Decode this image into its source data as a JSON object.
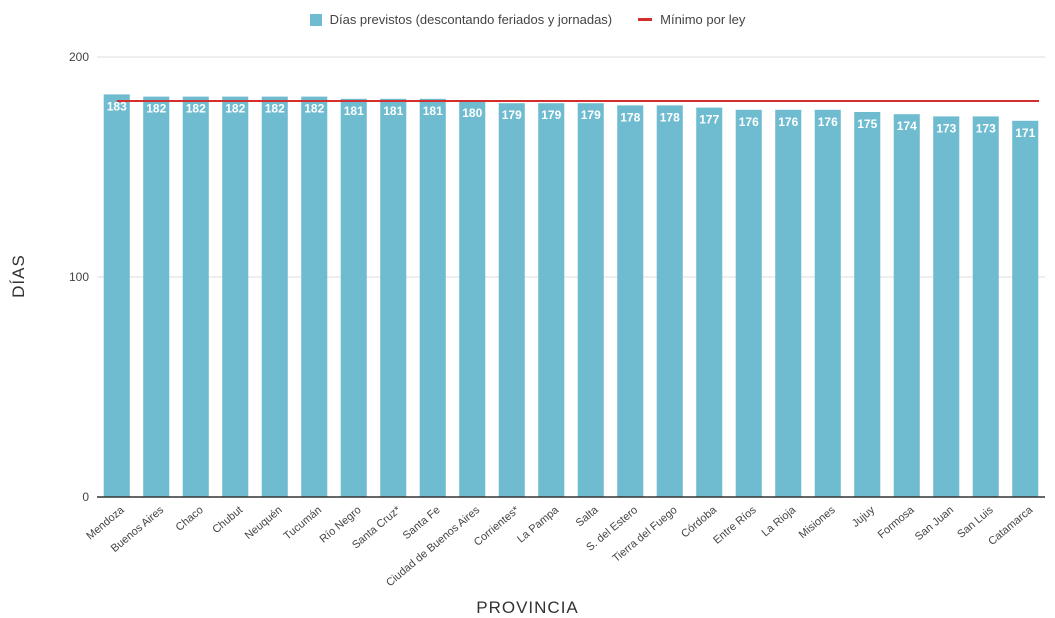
{
  "chart_data": {
    "type": "bar",
    "title": "",
    "xlabel": "PROVINCIA",
    "ylabel": "DÍAS",
    "ylim": [
      0,
      200
    ],
    "yticks": [
      0,
      100,
      200
    ],
    "grid": true,
    "legend_position": "top-center",
    "colors": {
      "bar": "#6fbcd1",
      "line": "#d32f2f",
      "grid": "#dddddd",
      "axis": "#333333",
      "bar_label": "#ffffff"
    },
    "categories": [
      "Mendoza",
      "Buenos Aires",
      "Chaco",
      "Chubut",
      "Neuquén",
      "Tucumán",
      "Río Negro",
      "Santa Cruz*",
      "Santa Fe",
      "Ciudad de Buenos Aires",
      "Corrientes*",
      "La Pampa",
      "Salta",
      "S. del Estero",
      "Tierra del Fuego",
      "Córdoba",
      "Entre Ríos",
      "La Rioja",
      "Misiones",
      "Jujuy",
      "Formosa",
      "San Juan",
      "San Luis",
      "Catamarca"
    ],
    "series": [
      {
        "name": "Días previstos (descontando feriados y jornadas)",
        "type": "bar",
        "values": [
          183,
          182,
          182,
          182,
          182,
          182,
          181,
          181,
          181,
          180,
          179,
          179,
          179,
          178,
          178,
          177,
          176,
          176,
          176,
          175,
          174,
          173,
          173,
          171
        ]
      },
      {
        "name": "Mínimo por ley",
        "type": "line",
        "value": 180
      }
    ]
  }
}
